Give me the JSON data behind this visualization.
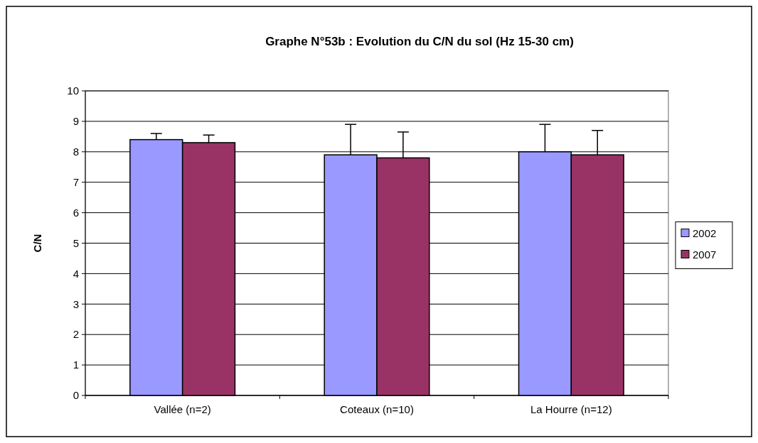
{
  "chart_data": {
    "type": "bar",
    "title": "Graphe N°53b : Evolution du C/N du sol (Hz 15-30 cm)",
    "ylabel": "C/N",
    "categories": [
      "Vallée (n=2)",
      "Coteaux (n=10)",
      "La Hourre (n=12)"
    ],
    "series": [
      {
        "name": "2002",
        "color": "#9999ff",
        "values": [
          8.4,
          7.9,
          8.0
        ],
        "errors": [
          [
            8.4,
            8.6
          ],
          [
            7.9,
            8.9
          ],
          [
            8.0,
            8.9
          ]
        ]
      },
      {
        "name": "2007",
        "color": "#993366",
        "values": [
          8.3,
          7.8,
          7.9
        ],
        "errors": [
          [
            8.3,
            8.55
          ],
          [
            7.8,
            8.65
          ],
          [
            7.9,
            8.7
          ]
        ]
      }
    ],
    "ylim": [
      0,
      10
    ],
    "yticks": [
      0,
      1,
      2,
      3,
      4,
      5,
      6,
      7,
      8,
      9,
      10
    ],
    "grid": "y",
    "legend": "right"
  }
}
